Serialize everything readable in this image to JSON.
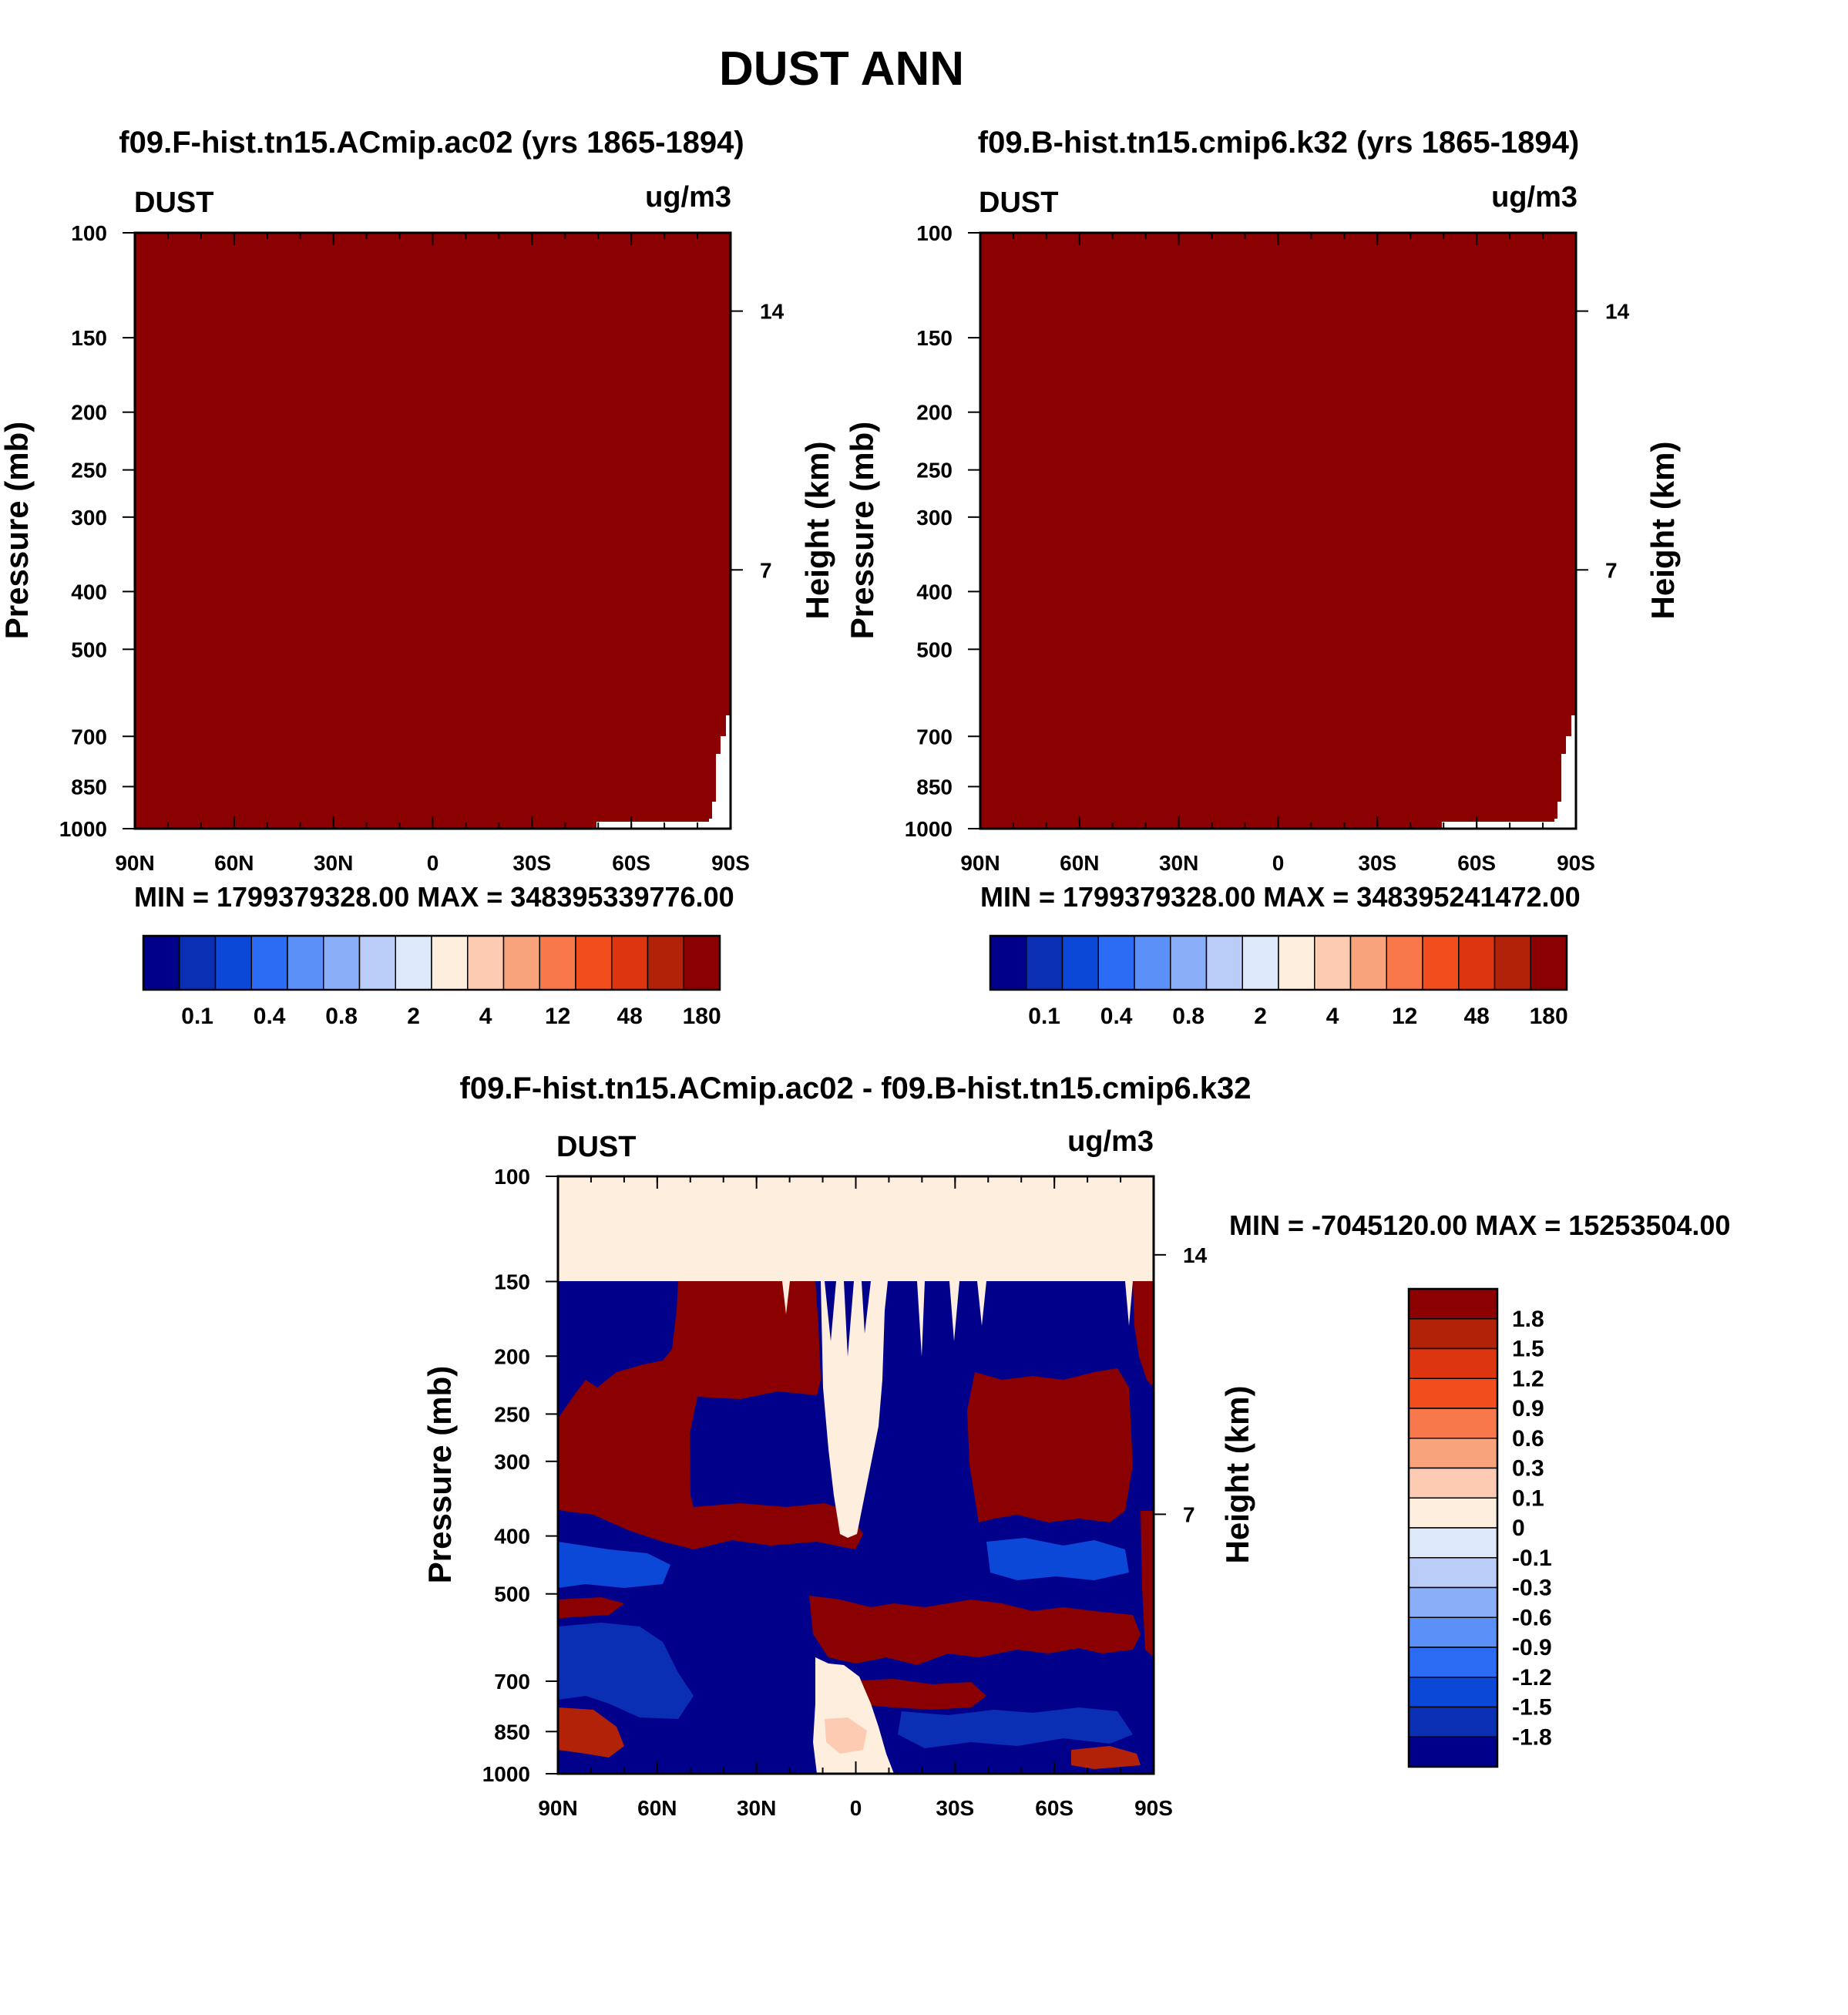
{
  "figure": {
    "title": "DUST ANN"
  },
  "colors": {
    "abs_scale": [
      "#00008b",
      "#0a2fb4",
      "#0c48d8",
      "#2c6cf4",
      "#5a90f8",
      "#8aaff8",
      "#b9cdf8",
      "#dde9fb",
      "#fdeede",
      "#fdcbb1",
      "#f9a37c",
      "#f7784a",
      "#f24d1d",
      "#dd3510",
      "#b22209",
      "#8b0000"
    ],
    "diff_scale": [
      "#8b0000",
      "#b22209",
      "#dd3510",
      "#f24d1d",
      "#f7784a",
      "#f9a37c",
      "#fdcbb1",
      "#fdeede",
      "#dde9fb",
      "#b9cdf8",
      "#8aaff8",
      "#5a90f8",
      "#2c6cf4",
      "#0c48d8",
      "#0a2fb4",
      "#00008b"
    ]
  },
  "chart_data": [
    {
      "id": "panel1",
      "type": "heatmap",
      "title": "f09.F-hist.tn15.ACmip.ac02 (yrs 1865-1894)",
      "variable": "DUST",
      "units": "ug/m3",
      "ylabel": "Pressure (mb)",
      "ylabel_right": "Height (km)",
      "x_ticks": [
        "90N",
        "60N",
        "30N",
        "0",
        "30S",
        "60S",
        "90S"
      ],
      "x_range": [
        90,
        -90
      ],
      "y_ticks": [
        100,
        150,
        200,
        250,
        300,
        400,
        500,
        700,
        850,
        1000
      ],
      "y_range": [
        100,
        1000
      ],
      "right_ticks": [
        14,
        7
      ],
      "stats": "MIN = 1799379328.00  MAX = 348395339776.00",
      "colorbar_labels": [
        "0.1",
        "0.4",
        "0.8",
        "2",
        "4",
        "12",
        "48",
        "180"
      ],
      "field": "nearly uniform maximum class (>180) everywhere except a small blank region near 90S at the surface"
    },
    {
      "id": "panel2",
      "type": "heatmap",
      "title": "f09.B-hist.tn15.cmip6.k32 (yrs 1865-1894)",
      "variable": "DUST",
      "units": "ug/m3",
      "ylabel": "Pressure (mb)",
      "ylabel_right": "Height (km)",
      "x_ticks": [
        "90N",
        "60N",
        "30N",
        "0",
        "30S",
        "60S",
        "90S"
      ],
      "x_range": [
        90,
        -90
      ],
      "y_ticks": [
        100,
        150,
        200,
        250,
        300,
        400,
        500,
        700,
        850,
        1000
      ],
      "y_range": [
        100,
        1000
      ],
      "right_ticks": [
        14,
        7
      ],
      "stats": "MIN = 1799379328.00  MAX = 348395241472.00",
      "colorbar_labels": [
        "0.1",
        "0.4",
        "0.8",
        "2",
        "4",
        "12",
        "48",
        "180"
      ],
      "field": "nearly uniform maximum class (>180) everywhere except a small blank region near 90S at the surface"
    },
    {
      "id": "panel3",
      "type": "heatmap",
      "title": "f09.F-hist.tn15.ACmip.ac02 - f09.B-hist.tn15.cmip6.k32",
      "variable": "DUST",
      "units": "ug/m3",
      "ylabel": "Pressure (mb)",
      "ylabel_right": "Height (km)",
      "x_ticks": [
        "90N",
        "60N",
        "30N",
        "0",
        "30S",
        "60S",
        "90S"
      ],
      "x_range": [
        90,
        -90
      ],
      "y_ticks": [
        100,
        150,
        200,
        250,
        300,
        400,
        500,
        700,
        850,
        1000
      ],
      "y_range": [
        100,
        1000
      ],
      "right_ticks": [
        14,
        7
      ],
      "stats": "MIN = -7045120.00  MAX = 15253504.00",
      "colorbar_labels": [
        "1.8",
        "1.5",
        "1.2",
        "0.9",
        "0.6",
        "0.3",
        "0.1",
        "0",
        "-0.1",
        "-0.3",
        "-0.6",
        "-0.9",
        "-1.2",
        "-1.5",
        "-1.8"
      ],
      "field": "100-150 mb near zero; below 150 mb alternating strong positive (>1.8) and strong negative (<-1.8) layers, near-zero column around the equator"
    }
  ]
}
